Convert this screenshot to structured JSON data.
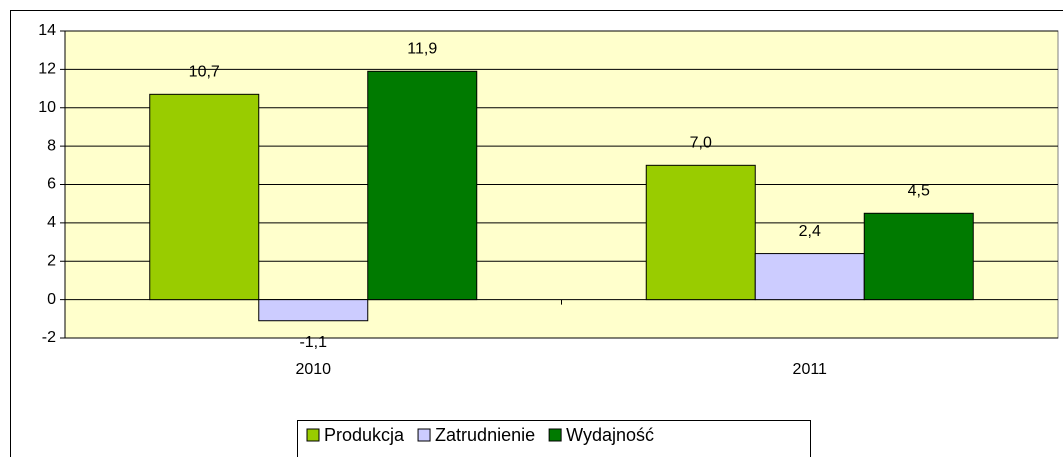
{
  "chart_data": {
    "type": "bar",
    "categories": [
      "2010",
      "2011"
    ],
    "series": [
      {
        "name": "Produkcja",
        "color": "#99cc00",
        "values": [
          10.7,
          7.0
        ],
        "value_labels": [
          "10,7",
          "7,0"
        ]
      },
      {
        "name": "Zatrudnienie",
        "color": "#ccccff",
        "values": [
          -1.1,
          2.4
        ],
        "value_labels": [
          "-1,1",
          "2,4"
        ]
      },
      {
        "name": "Wydajność",
        "color": "#007a00",
        "values": [
          11.9,
          4.5
        ],
        "value_labels": [
          "11,9",
          "4,5"
        ]
      }
    ],
    "ylim": [
      -2,
      14
    ],
    "yticks": [
      -2,
      0,
      2,
      4,
      6,
      8,
      10,
      12,
      14
    ],
    "grid": true,
    "background": "#ffffcc",
    "legend": "bottom"
  }
}
